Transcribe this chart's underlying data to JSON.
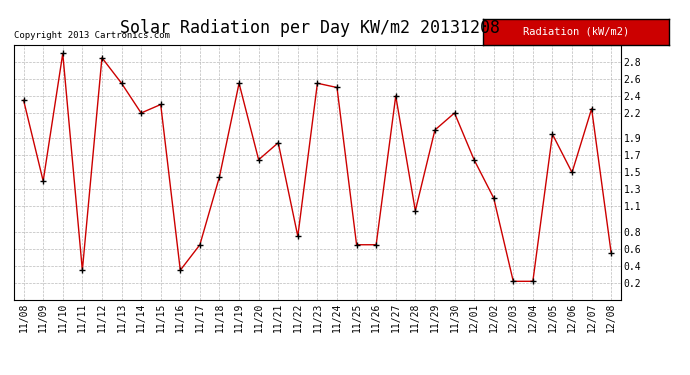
{
  "title": "Solar Radiation per Day KW/m2 20131208",
  "copyright": "Copyright 2013 Cartronics.com",
  "legend_label": "Radiation (kW/m2)",
  "dates": [
    "11/08",
    "11/09",
    "11/10",
    "11/11",
    "11/12",
    "11/13",
    "11/14",
    "11/15",
    "11/16",
    "11/17",
    "11/18",
    "11/19",
    "11/20",
    "11/21",
    "11/22",
    "11/23",
    "11/24",
    "11/25",
    "11/26",
    "11/27",
    "11/28",
    "11/29",
    "11/30",
    "12/01",
    "12/02",
    "12/03",
    "12/04",
    "12/05",
    "12/06",
    "12/07",
    "12/08"
  ],
  "values": [
    2.35,
    1.4,
    2.9,
    0.35,
    2.85,
    2.55,
    2.2,
    2.3,
    0.35,
    0.65,
    1.45,
    2.55,
    1.65,
    1.85,
    0.75,
    2.55,
    2.5,
    0.65,
    0.65,
    2.4,
    1.05,
    2.0,
    2.2,
    1.65,
    1.2,
    0.22,
    0.22,
    1.95,
    1.5,
    2.25,
    0.55
  ],
  "ylim": [
    0.0,
    3.0
  ],
  "yticks": [
    0.2,
    0.4,
    0.6,
    0.8,
    1.1,
    1.3,
    1.5,
    1.7,
    1.9,
    2.2,
    2.4,
    2.6,
    2.8
  ],
  "line_color": "#cc0000",
  "marker_color": "#000000",
  "bg_color": "#ffffff",
  "plot_bg_color": "#ffffff",
  "grid_color": "#aaaaaa",
  "title_fontsize": 12,
  "copyright_fontsize": 6.5,
  "tick_fontsize": 7,
  "legend_bg": "#cc0000",
  "legend_text_color": "#ffffff",
  "legend_fontsize": 7.5
}
